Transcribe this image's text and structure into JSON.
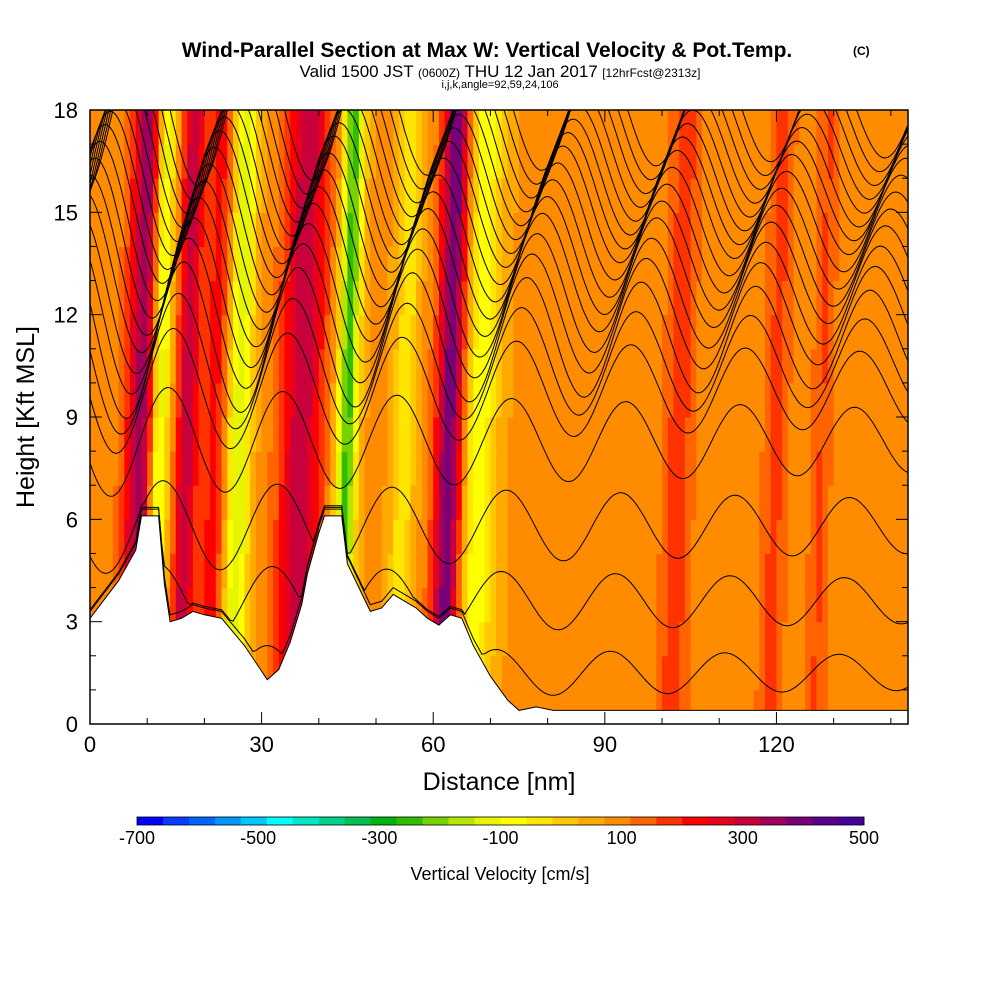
{
  "header": {
    "title": "Wind-Parallel Section at Max W: Vertical Velocity & Pot.Temp.",
    "title_mark": "(C)",
    "valid_prefix": "Valid 1500 JST",
    "valid_utc": "(0600Z)",
    "valid_date": "THU 12 Jan 2017",
    "forecast": "[12hrFcst@2313z]",
    "indices": "i,j,k,angle=92,59,24,106"
  },
  "chart_data": {
    "type": "heatmap",
    "xlabel": "Distance [nm]",
    "ylabel": "Height [Kft MSL]",
    "xlim": [
      0,
      143
    ],
    "ylim": [
      0,
      18
    ],
    "x_ticks": [
      "0",
      "30",
      "60",
      "90",
      "120"
    ],
    "y_ticks": [
      "0",
      "3",
      "6",
      "9",
      "12",
      "15",
      "18"
    ],
    "colorbar": {
      "label": "Vertical Velocity [cm/s]",
      "min": -700,
      "max": 500,
      "tick_labels": [
        "-700",
        "-500",
        "-300",
        "-100",
        "100",
        "300",
        "500"
      ],
      "colors": [
        "#0000ff",
        "#0a3cff",
        "#0064ff",
        "#0096ff",
        "#00c8ff",
        "#00ffff",
        "#00e6c8",
        "#00d28c",
        "#00c050",
        "#00b414",
        "#32be00",
        "#78d200",
        "#b4e600",
        "#e6f500",
        "#ffff00",
        "#ffe600",
        "#ffc800",
        "#ffaa00",
        "#ff8c00",
        "#ff6400",
        "#ff3200",
        "#ff0000",
        "#e6001e",
        "#c8003c",
        "#a0005a",
        "#780078",
        "#5a008c",
        "#46009b"
      ]
    },
    "terrain_kft": [
      [
        0,
        3.1
      ],
      [
        5,
        4.2
      ],
      [
        8,
        5.1
      ],
      [
        9,
        6.1
      ],
      [
        12,
        6.1
      ],
      [
        13,
        4.1
      ],
      [
        14,
        3
      ],
      [
        16,
        3.1
      ],
      [
        18,
        3.3
      ],
      [
        20,
        3.2
      ],
      [
        23,
        3.1
      ],
      [
        25,
        2.7
      ],
      [
        27,
        2.3
      ],
      [
        29,
        1.8
      ],
      [
        31,
        1.3
      ],
      [
        33,
        1.6
      ],
      [
        35,
        2.4
      ],
      [
        37,
        3.5
      ],
      [
        38,
        4.4
      ],
      [
        40,
        5.6
      ],
      [
        41,
        6.1
      ],
      [
        44,
        6.1
      ],
      [
        45,
        4.7
      ],
      [
        47,
        4
      ],
      [
        49,
        3.3
      ],
      [
        51,
        3.4
      ],
      [
        53,
        3.8
      ],
      [
        55,
        3.6
      ],
      [
        57,
        3.4
      ],
      [
        59,
        3.1
      ],
      [
        61,
        2.9
      ],
      [
        63,
        3.2
      ],
      [
        65,
        3.1
      ],
      [
        67,
        2.3
      ],
      [
        70,
        1.4
      ],
      [
        73,
        0.7
      ],
      [
        75,
        0.4
      ],
      [
        78,
        0.5
      ],
      [
        81,
        0.4
      ],
      [
        143,
        0.4
      ]
    ],
    "theta_contour_heights_kft": [
      1.5,
      3.6,
      5.8,
      8.3,
      9.8,
      10.6,
      11.3,
      12,
      12.6,
      13.2,
      13.7,
      14.2,
      14.7,
      15.2,
      15.6,
      16,
      16.4,
      16.8,
      17.2,
      17.6,
      18
    ],
    "updraft_bands_nm": [
      [
        9.5,
        3.2,
        300
      ],
      [
        17,
        1.8,
        240
      ],
      [
        22,
        2.6,
        140
      ],
      [
        37,
        3.8,
        240
      ],
      [
        63,
        2.5,
        330
      ],
      [
        103,
        2.8,
        100
      ],
      [
        120,
        2.4,
        90
      ],
      [
        128,
        2.0,
        80
      ]
    ],
    "downdraft_bands_nm": [
      [
        12,
        1.8,
        -330
      ],
      [
        26,
        2.2,
        -230
      ],
      [
        45,
        1.8,
        -330
      ],
      [
        55,
        2.0,
        -120
      ],
      [
        68,
        3.2,
        -170
      ]
    ]
  }
}
